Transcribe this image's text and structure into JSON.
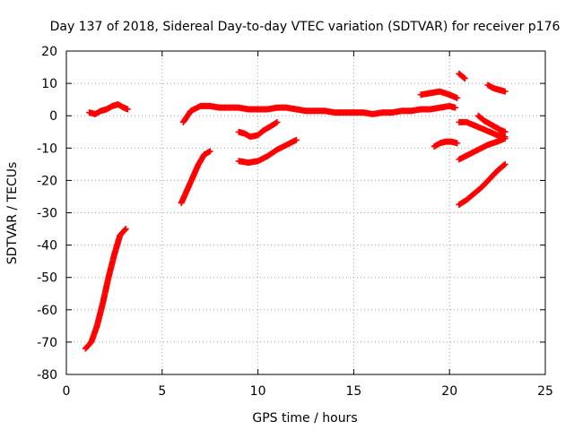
{
  "colors": {
    "series": "#ff0000",
    "axis": "#000000",
    "grid": "#a0a0a0"
  },
  "chart_data": {
    "type": "scatter",
    "title": "Day 137 of 2018, Sidereal Day-to-day VTEC variation (SDTVAR) for receiver p176",
    "xlabel": "GPS time / hours",
    "ylabel": "SDTVAR / TECUs",
    "xlim": [
      0,
      25
    ],
    "ylim": [
      -80,
      20
    ],
    "xticks": [
      0,
      5,
      10,
      15,
      20,
      25
    ],
    "yticks": [
      -80,
      -70,
      -60,
      -50,
      -40,
      -30,
      -20,
      -10,
      0,
      10,
      20
    ],
    "grid": true,
    "marker": "plus",
    "series": [
      {
        "x": [
          1.0,
          1.3,
          1.6,
          1.9,
          2.2,
          2.5,
          2.8,
          3.1
        ],
        "y": [
          -72,
          -70,
          -65,
          -58,
          -50,
          -43,
          -37,
          -35
        ]
      },
      {
        "x": [
          1.2,
          1.5,
          1.8,
          2.1,
          2.4,
          2.7,
          3.0,
          3.2
        ],
        "y": [
          1,
          0.5,
          1.5,
          2,
          3,
          3.5,
          2.5,
          2
        ]
      },
      {
        "x": [
          6.0,
          6.3,
          6.6,
          6.9,
          7.2,
          7.5
        ],
        "y": [
          -27,
          -23,
          -19,
          -15,
          -12,
          -11
        ]
      },
      {
        "x": [
          6.1,
          6.5,
          7.0,
          7.5,
          8.0,
          8.5,
          9.0,
          9.5,
          10.0,
          10.5,
          11.0,
          11.5,
          12.0,
          12.5,
          13.0,
          13.5,
          14.0,
          14.5,
          15.0,
          15.5,
          16.0,
          16.5,
          17.0,
          17.5,
          18.0,
          18.5,
          19.0,
          19.5,
          20.0,
          20.3
        ],
        "y": [
          -2,
          1.5,
          3,
          3,
          2.5,
          2.5,
          2.5,
          2,
          2,
          2,
          2.5,
          2.5,
          2,
          1.5,
          1.5,
          1.5,
          1,
          1,
          1,
          1,
          0.5,
          1,
          1,
          1.5,
          1.5,
          2,
          2,
          2.5,
          3,
          2.5
        ]
      },
      {
        "x": [
          9.0,
          9.3,
          9.6,
          10.0,
          10.3,
          10.6,
          11.0
        ],
        "y": [
          -5,
          -5.5,
          -6.5,
          -6,
          -4.5,
          -3.5,
          -2
        ]
      },
      {
        "x": [
          9.0,
          9.5,
          10.0,
          10.5,
          11.0,
          11.5,
          12.0
        ],
        "y": [
          -14,
          -14.5,
          -14,
          -12.5,
          -10.5,
          -9,
          -7.5
        ]
      },
      {
        "x": [
          18.5,
          19.0,
          19.5,
          20.0,
          20.4
        ],
        "y": [
          6.5,
          7,
          7.5,
          6.5,
          5.5
        ]
      },
      {
        "x": [
          19.2,
          19.5,
          19.8,
          20.1,
          20.4
        ],
        "y": [
          -9.5,
          -8.5,
          -8,
          -8,
          -8.5
        ]
      },
      {
        "x": [
          20.5,
          20.8
        ],
        "y": [
          13,
          11.5
        ]
      },
      {
        "x": [
          22.0,
          22.3,
          22.6,
          22.9
        ],
        "y": [
          9.5,
          8.5,
          8,
          7.5
        ]
      },
      {
        "x": [
          20.5,
          20.9,
          21.3,
          21.7,
          22.1,
          22.5,
          22.9
        ],
        "y": [
          -2,
          -2,
          -3,
          -4,
          -5,
          -6,
          -6.5
        ]
      },
      {
        "x": [
          21.5,
          21.8,
          22.1,
          22.4,
          22.7,
          22.9
        ],
        "y": [
          0,
          -1.5,
          -2.5,
          -3.5,
          -4.5,
          -5
        ]
      },
      {
        "x": [
          20.5,
          21.0,
          21.5,
          22.0,
          22.5,
          22.9
        ],
        "y": [
          -13.5,
          -12,
          -10.5,
          -9,
          -8,
          -7
        ]
      },
      {
        "x": [
          20.5,
          20.9,
          21.3,
          21.7,
          22.1,
          22.5,
          22.9
        ],
        "y": [
          -27.5,
          -26,
          -24,
          -22,
          -19.5,
          -17,
          -15
        ]
      }
    ]
  }
}
